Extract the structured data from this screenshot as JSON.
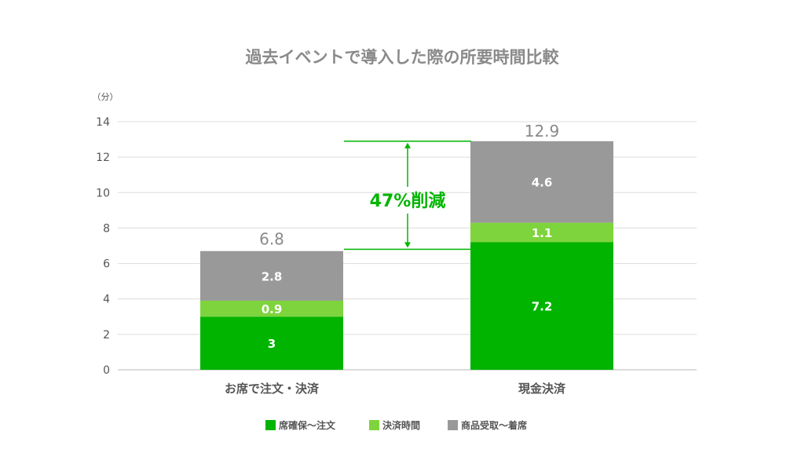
{
  "chart_data": {
    "type": "bar",
    "stacked": true,
    "title": "過去イベントで導入した際の所要時間比較",
    "unit_label": "（分）",
    "categories": [
      "お席で注文・決済",
      "現金決済"
    ],
    "series": [
      {
        "name": "席確保〜注文",
        "values": [
          3,
          7.2
        ],
        "color": "#00b400"
      },
      {
        "name": "決済時間",
        "values": [
          0.9,
          1.1
        ],
        "color": "#7ed43c"
      },
      {
        "name": "商品受取〜着席",
        "values": [
          2.8,
          4.6
        ],
        "color": "#999999"
      }
    ],
    "segment_labels": [
      [
        "3",
        "0.9",
        "2.8"
      ],
      [
        "7.2",
        "1.1",
        "4.6"
      ]
    ],
    "totals": [
      6.8,
      12.9
    ],
    "total_labels": [
      "6.8",
      "12.9"
    ],
    "yticks": [
      "0",
      "2",
      "4",
      "6",
      "8",
      "10",
      "12",
      "14"
    ],
    "ylim": [
      0,
      14
    ],
    "grid": true,
    "legend_position": "bottom",
    "annotation": {
      "text": "47%削減",
      "color": "#00b500"
    }
  }
}
